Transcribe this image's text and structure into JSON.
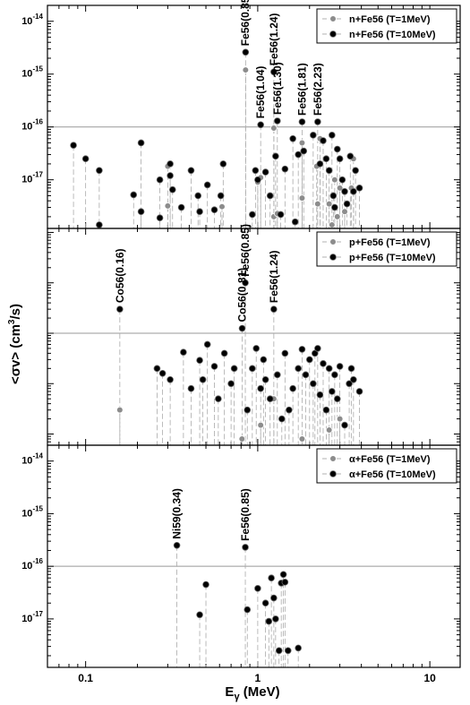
{
  "chart_data": [
    {
      "type": "scatter",
      "panel": "n+Fe56",
      "xscale": "log",
      "yscale": "log",
      "xlim": [
        0.06,
        15
      ],
      "ylim": [
        1.2e-18,
        2e-14
      ],
      "y_tick_labels": [
        {
          "v": 1e-14,
          "base": "10",
          "exp": "-14"
        },
        {
          "v": 1e-15,
          "base": "10",
          "exp": "-15"
        },
        {
          "v": 1e-16,
          "base": "10",
          "exp": "-16"
        },
        {
          "v": 1e-17,
          "base": "10",
          "exp": "-17"
        }
      ],
      "reference_line": 1e-16,
      "legend": [
        "n+Fe56 (T=1MeV)",
        "n+Fe56 (T=10MeV)"
      ],
      "annotations": [
        {
          "text": "Fe56(0.85)",
          "x": 0.847,
          "y": 2.6e-15
        },
        {
          "text": "Fe56(1.24)",
          "x": 1.24,
          "y": 1.1e-15
        },
        {
          "text": "Fe56(1.04)",
          "x": 1.04,
          "y": 1.1e-16
        },
        {
          "text": "Fe56(1.30)",
          "x": 1.3,
          "y": 1.3e-16
        },
        {
          "text": "Fe56(1.81)",
          "x": 1.81,
          "y": 1.25e-16
        },
        {
          "text": "Fe56(2.23)",
          "x": 2.23,
          "y": 1.25e-16
        }
      ],
      "series": [
        {
          "name": "n+Fe56 (T=1MeV)",
          "color": "#8c8c8c",
          "points": [
            [
              0.3,
              3.2e-18
            ],
            [
              0.3,
              1.8e-17
            ],
            [
              0.62,
              3.1e-18
            ],
            [
              0.85,
              1.2e-15
            ],
            [
              1.0,
              9e-18
            ],
            [
              1.04,
              1.1e-17
            ],
            [
              1.24,
              2e-18
            ],
            [
              1.24,
              9.5e-17
            ],
            [
              1.3,
              2.3e-18
            ],
            [
              1.81,
              4.5e-18
            ],
            [
              1.81,
              5e-17
            ],
            [
              2.2,
              1.8e-17
            ],
            [
              2.23,
              3.5e-18
            ],
            [
              2.3,
              6e-17
            ],
            [
              2.6,
              3.5e-18
            ],
            [
              2.8,
              1e-17
            ],
            [
              2.9,
              2e-18
            ],
            [
              3.0,
              7e-18
            ],
            [
              3.2,
              2.5e-18
            ],
            [
              3.5,
              7e-18
            ],
            [
              3.6,
              2.5e-17
            ],
            [
              2.7,
              1.4e-18
            ]
          ]
        },
        {
          "name": "n+Fe56 (T=10MeV)",
          "color": "#000000",
          "points": [
            [
              0.085,
              4.5e-17
            ],
            [
              0.1,
              2.5e-17
            ],
            [
              0.12,
              1.5e-17
            ],
            [
              0.12,
              1.4e-18
            ],
            [
              0.19,
              5.2e-18
            ],
            [
              0.21,
              5e-17
            ],
            [
              0.21,
              2.5e-18
            ],
            [
              0.27,
              1e-17
            ],
            [
              0.27,
              1.9e-18
            ],
            [
              0.31,
              2e-17
            ],
            [
              0.31,
              1.2e-17
            ],
            [
              0.32,
              6.5e-18
            ],
            [
              0.36,
              3e-18
            ],
            [
              0.41,
              1.5e-17
            ],
            [
              0.45,
              5e-18
            ],
            [
              0.46,
              2.5e-18
            ],
            [
              0.51,
              8e-18
            ],
            [
              0.56,
              2.7e-18
            ],
            [
              0.61,
              5e-18
            ],
            [
              0.63,
              2e-17
            ],
            [
              0.85,
              2.6e-15
            ],
            [
              0.93,
              2.2e-18
            ],
            [
              0.97,
              1.5e-17
            ],
            [
              1.0,
              1e-17
            ],
            [
              1.04,
              1.1e-16
            ],
            [
              1.11,
              1.4e-17
            ],
            [
              1.18,
              5e-18
            ],
            [
              1.24,
              1.1e-15
            ],
            [
              1.27,
              2.8e-17
            ],
            [
              1.3,
              1.3e-16
            ],
            [
              1.36,
              2.2e-18
            ],
            [
              1.44,
              1.6e-17
            ],
            [
              1.6,
              6e-17
            ],
            [
              1.65,
              1.6e-18
            ],
            [
              1.72,
              3e-17
            ],
            [
              1.81,
              1.25e-16
            ],
            [
              1.85,
              3.5e-17
            ],
            [
              2.1,
              7e-17
            ],
            [
              2.23,
              1.25e-16
            ],
            [
              2.3,
              2e-17
            ],
            [
              2.4,
              5.5e-17
            ],
            [
              2.5,
              2.5e-17
            ],
            [
              2.6,
              1.5e-17
            ],
            [
              2.7,
              7e-17
            ],
            [
              2.75,
              5e-18
            ],
            [
              2.8,
              3e-18
            ],
            [
              2.9,
              3.8e-17
            ],
            [
              3.0,
              2.5e-17
            ],
            [
              3.1,
              1e-17
            ],
            [
              3.2,
              6e-18
            ],
            [
              3.3,
              3.5e-18
            ],
            [
              3.45,
              2.8e-17
            ],
            [
              3.6,
              6e-18
            ],
            [
              3.7,
              1.5e-17
            ],
            [
              3.9,
              7e-18
            ]
          ]
        }
      ]
    },
    {
      "type": "scatter",
      "panel": "p+Fe56",
      "xscale": "log",
      "yscale": "log",
      "xlim": [
        0.06,
        15
      ],
      "ylim": [
        0.6,
        12000
      ],
      "y_tick_labels": [],
      "reference_line": 100,
      "legend": [
        "p+Fe56 (T=1MeV)",
        "p+Fe56 (T=10MeV)"
      ],
      "annotations": [
        {
          "text": "Co56(0.16)",
          "x": 0.158,
          "y": 300
        },
        {
          "text": "Co56(0.81)",
          "x": 0.812,
          "y": 125
        },
        {
          "text": "Fe56(0.85)",
          "x": 0.847,
          "y": 1000
        },
        {
          "text": "Fe56(1.24)",
          "x": 1.24,
          "y": 300
        }
      ],
      "series": [
        {
          "name": "p+Fe56 (T=1MeV)",
          "color": "#8c8c8c",
          "points": [
            [
              0.158,
              3
            ],
            [
              0.81,
              0.8
            ],
            [
              1.04,
              1.5
            ],
            [
              1.24,
              5
            ],
            [
              1.81,
              0.8
            ],
            [
              2.6,
              1.2
            ],
            [
              3.0,
              2
            ]
          ]
        },
        {
          "name": "p+Fe56 (T=10MeV)",
          "color": "#000000",
          "points": [
            [
              0.158,
              300
            ],
            [
              0.26,
              20
            ],
            [
              0.28,
              16
            ],
            [
              0.31,
              12
            ],
            [
              0.37,
              42
            ],
            [
              0.41,
              8
            ],
            [
              0.46,
              29
            ],
            [
              0.48,
              12
            ],
            [
              0.51,
              60
            ],
            [
              0.56,
              22
            ],
            [
              0.59,
              5
            ],
            [
              0.64,
              40
            ],
            [
              0.7,
              10
            ],
            [
              0.73,
              20
            ],
            [
              0.812,
              125
            ],
            [
              0.847,
              1000
            ],
            [
              0.87,
              3
            ],
            [
              0.93,
              20
            ],
            [
              0.98,
              50
            ],
            [
              1.04,
              8
            ],
            [
              1.08,
              30
            ],
            [
              1.11,
              12
            ],
            [
              1.18,
              5
            ],
            [
              1.24,
              300
            ],
            [
              1.3,
              15
            ],
            [
              1.38,
              2
            ],
            [
              1.44,
              40
            ],
            [
              1.52,
              3
            ],
            [
              1.6,
              8
            ],
            [
              1.72,
              20
            ],
            [
              1.81,
              48
            ],
            [
              1.9,
              15
            ],
            [
              2.0,
              30
            ],
            [
              2.1,
              10
            ],
            [
              2.15,
              40
            ],
            [
              2.23,
              50
            ],
            [
              2.3,
              6
            ],
            [
              2.4,
              25
            ],
            [
              2.5,
              3
            ],
            [
              2.6,
              20
            ],
            [
              2.7,
              7
            ],
            [
              2.8,
              15
            ],
            [
              2.9,
              5
            ],
            [
              3.0,
              22
            ],
            [
              3.2,
              1.5
            ],
            [
              3.4,
              10
            ],
            [
              3.5,
              20
            ],
            [
              3.6,
              12
            ],
            [
              3.9,
              7
            ]
          ]
        }
      ]
    },
    {
      "type": "scatter",
      "panel": "alpha+Fe56",
      "xscale": "log",
      "yscale": "log",
      "xlim": [
        0.06,
        15
      ],
      "ylim": [
        1.2e-18,
        2e-14
      ],
      "y_tick_labels": [
        {
          "v": 1e-14,
          "base": "10",
          "exp": "-14"
        },
        {
          "v": 1e-15,
          "base": "10",
          "exp": "-15"
        },
        {
          "v": 1e-16,
          "base": "10",
          "exp": "-16"
        },
        {
          "v": 1e-17,
          "base": "10",
          "exp": "-17"
        }
      ],
      "reference_line": 1e-16,
      "legend": [
        "α+Fe56 (T=1MeV)",
        "α+Fe56 (T=10MeV)"
      ],
      "annotations": [
        {
          "text": "Ni59(0.34)",
          "x": 0.339,
          "y": 2.5e-16
        },
        {
          "text": "Fe56(0.85)",
          "x": 0.847,
          "y": 2.3e-16
        }
      ],
      "series": [
        {
          "name": "α+Fe56 (T=1MeV)",
          "color": "#8c8c8c",
          "points": []
        },
        {
          "name": "α+Fe56 (T=10MeV)",
          "color": "#000000",
          "points": [
            [
              0.339,
              2.5e-16
            ],
            [
              0.46,
              1.2e-17
            ],
            [
              0.5,
              4.5e-17
            ],
            [
              0.847,
              2.3e-16
            ],
            [
              0.87,
              1.5e-17
            ],
            [
              1.0,
              3.8e-17
            ],
            [
              1.11,
              2e-17
            ],
            [
              1.16,
              9e-18
            ],
            [
              1.2,
              6e-17
            ],
            [
              1.24,
              2.5e-17
            ],
            [
              1.27,
              1e-17
            ],
            [
              1.33,
              2.5e-18
            ],
            [
              1.37,
              4.8e-17
            ],
            [
              1.41,
              7e-17
            ],
            [
              1.44,
              5e-17
            ],
            [
              1.5,
              2.5e-18
            ],
            [
              1.72,
              2.8e-18
            ]
          ]
        }
      ]
    }
  ],
  "axes": {
    "x_label_main": "E",
    "x_label_sub": "γ",
    "x_label_unit": " (MeV)",
    "x_tick_labels": [
      {
        "v": 0.1,
        "text": "0.1"
      },
      {
        "v": 1,
        "text": "1"
      },
      {
        "v": 10,
        "text": "10"
      }
    ],
    "y_label_pre": "<σv> (cm",
    "y_label_sup": "3",
    "y_label_post": "/s)"
  }
}
